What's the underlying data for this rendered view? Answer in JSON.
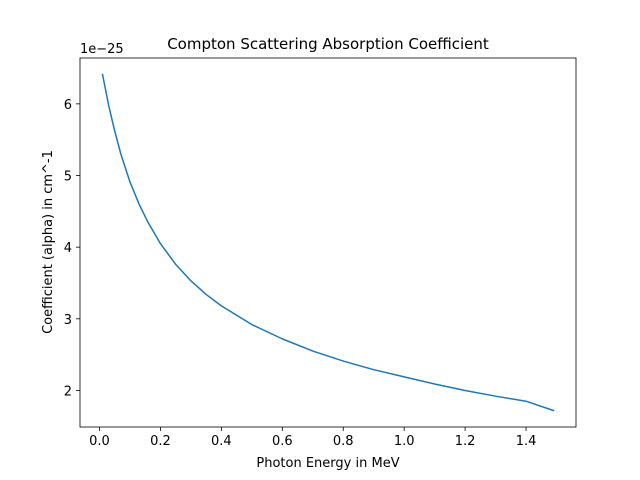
{
  "chart_data": {
    "type": "line",
    "title": "Compton Scattering Absorption Coefficient",
    "xlabel": "Photon Energy in MeV",
    "ylabel": "Coefficient (alpha) in cm^-1",
    "y_scale_label": "1e−25",
    "xlim": [
      -0.064,
      1.564
    ],
    "ylim": [
      1.49,
      6.64
    ],
    "x_ticks": [
      0.0,
      0.2,
      0.4,
      0.6,
      0.8,
      1.0,
      1.2,
      1.4
    ],
    "x_tick_labels": [
      "0.0",
      "0.2",
      "0.4",
      "0.6",
      "0.8",
      "1.0",
      "1.2",
      "1.4"
    ],
    "y_ticks": [
      2,
      3,
      4,
      5,
      6
    ],
    "y_tick_labels": [
      "2",
      "3",
      "4",
      "5",
      "6"
    ],
    "grid": false,
    "series": [
      {
        "color": "#1f77b4",
        "x": [
          0.01,
          0.03,
          0.05,
          0.07,
          0.1,
          0.13,
          0.16,
          0.2,
          0.25,
          0.3,
          0.35,
          0.4,
          0.5,
          0.6,
          0.7,
          0.8,
          0.9,
          1.0,
          1.1,
          1.2,
          1.3,
          1.4,
          1.49
        ],
        "y": [
          6.41,
          5.98,
          5.62,
          5.3,
          4.91,
          4.6,
          4.34,
          4.05,
          3.76,
          3.53,
          3.34,
          3.18,
          2.92,
          2.72,
          2.55,
          2.41,
          2.29,
          2.19,
          2.09,
          2.0,
          1.92,
          1.85,
          1.72
        ]
      }
    ]
  }
}
